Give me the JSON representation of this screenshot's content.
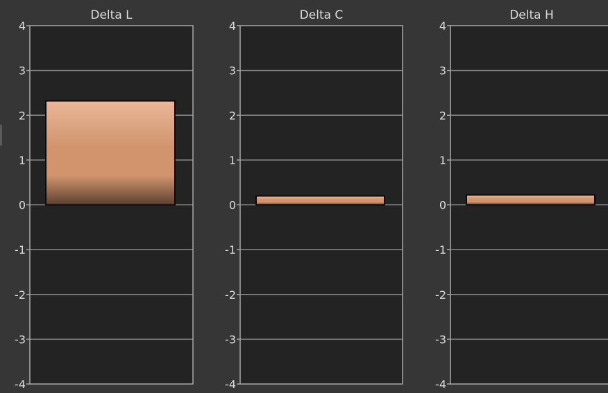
{
  "colors": {
    "page_bg": "#363636",
    "plot_bg": "#232323",
    "grid": "#8c8c8c",
    "frame": "#a8a8a8",
    "text": "#dcdcdc",
    "bar_top": "#eab799",
    "bar_mid": "#d1946d",
    "bar_bottom": "#5c4030",
    "bar_stroke": "#0a0a0a"
  },
  "chart_data": [
    {
      "type": "bar",
      "title": "Delta L",
      "categories": [
        ""
      ],
      "values": [
        2.32
      ],
      "ylim": [
        -4,
        4
      ],
      "yticks": [
        4,
        3,
        2,
        1,
        0,
        -1,
        -2,
        -3,
        -4
      ],
      "ytick_labels": [
        "4",
        "3",
        "2",
        "1",
        "0",
        "-1",
        "-2",
        "-3",
        "-4"
      ],
      "grid": true,
      "legend": "none"
    },
    {
      "type": "bar",
      "title": "Delta C",
      "categories": [
        ""
      ],
      "values": [
        0.2
      ],
      "ylim": [
        -4,
        4
      ],
      "yticks": [
        4,
        3,
        2,
        1,
        0,
        -1,
        -2,
        -3,
        -4
      ],
      "ytick_labels": [
        "4",
        "3",
        "2",
        "1",
        "0",
        "-1",
        "-2",
        "-3",
        "-4"
      ],
      "grid": true,
      "legend": "none"
    },
    {
      "type": "bar",
      "title": "Delta H",
      "categories": [
        ""
      ],
      "values": [
        0.22
      ],
      "ylim": [
        -4,
        4
      ],
      "yticks": [
        4,
        3,
        2,
        1,
        0,
        -1,
        -2,
        -3,
        -4
      ],
      "ytick_labels": [
        "4",
        "3",
        "2",
        "1",
        "0",
        "-1",
        "-2",
        "-3",
        "-4"
      ],
      "grid": true,
      "legend": "none"
    }
  ]
}
